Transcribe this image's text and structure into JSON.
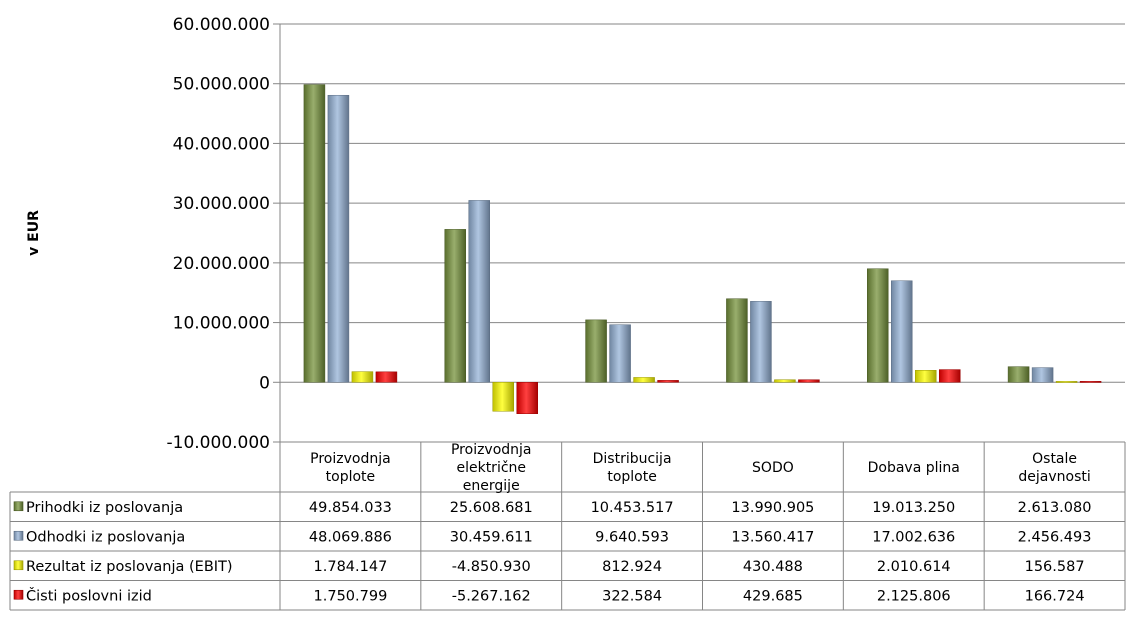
{
  "chart_data": {
    "type": "bar",
    "ylabel": "v EUR",
    "ylim": [
      -10000000,
      60000000
    ],
    "ytick_step": 10000000,
    "yticks": [
      "60.000.000",
      "50.000.000",
      "40.000.000",
      "30.000.000",
      "20.000.000",
      "10.000.000",
      "0",
      "-10.000.000"
    ],
    "categories": [
      [
        "Proizvodnja",
        "toplote"
      ],
      [
        "Proizvodnja",
        "električne",
        "energije"
      ],
      [
        "Distribucija",
        "toplote"
      ],
      [
        "SODO"
      ],
      [
        "Dobava plina"
      ],
      [
        "Ostale",
        "dejavnosti"
      ]
    ],
    "grid": true,
    "legend": "table-left",
    "series": [
      {
        "name": "Prihodki iz poslovanja",
        "color": "#77933c",
        "values": [
          49854033,
          25608681,
          10453517,
          13990905,
          19013250,
          2613080
        ],
        "labels": [
          "49.854.033",
          "25.608.681",
          "10.453.517",
          "13.990.905",
          "19.013.250",
          "2.613.080"
        ]
      },
      {
        "name": "Odhodki iz poslovanja",
        "color": "#95b3d7",
        "values": [
          48069886,
          30459611,
          9640593,
          13560417,
          17002636,
          2456493
        ],
        "labels": [
          "48.069.886",
          "30.459.611",
          "9.640.593",
          "13.560.417",
          "17.002.636",
          "2.456.493"
        ]
      },
      {
        "name": "Rezultat iz poslovanja (EBIT)",
        "color": "#ffff00",
        "values": [
          1784147,
          -4850930,
          812924,
          430488,
          2010614,
          156587
        ],
        "labels": [
          "1.784.147",
          "-4.850.930",
          "812.924",
          "430.488",
          "2.010.614",
          "156.587"
        ]
      },
      {
        "name": "Čisti poslovni izid",
        "color": "#ff0000",
        "values": [
          1750799,
          -5267162,
          322584,
          429685,
          2125806,
          166724
        ],
        "labels": [
          "1.750.799",
          "-5.267.162",
          "322.584",
          "429.685",
          "2.125.806",
          "166.724"
        ]
      }
    ]
  }
}
